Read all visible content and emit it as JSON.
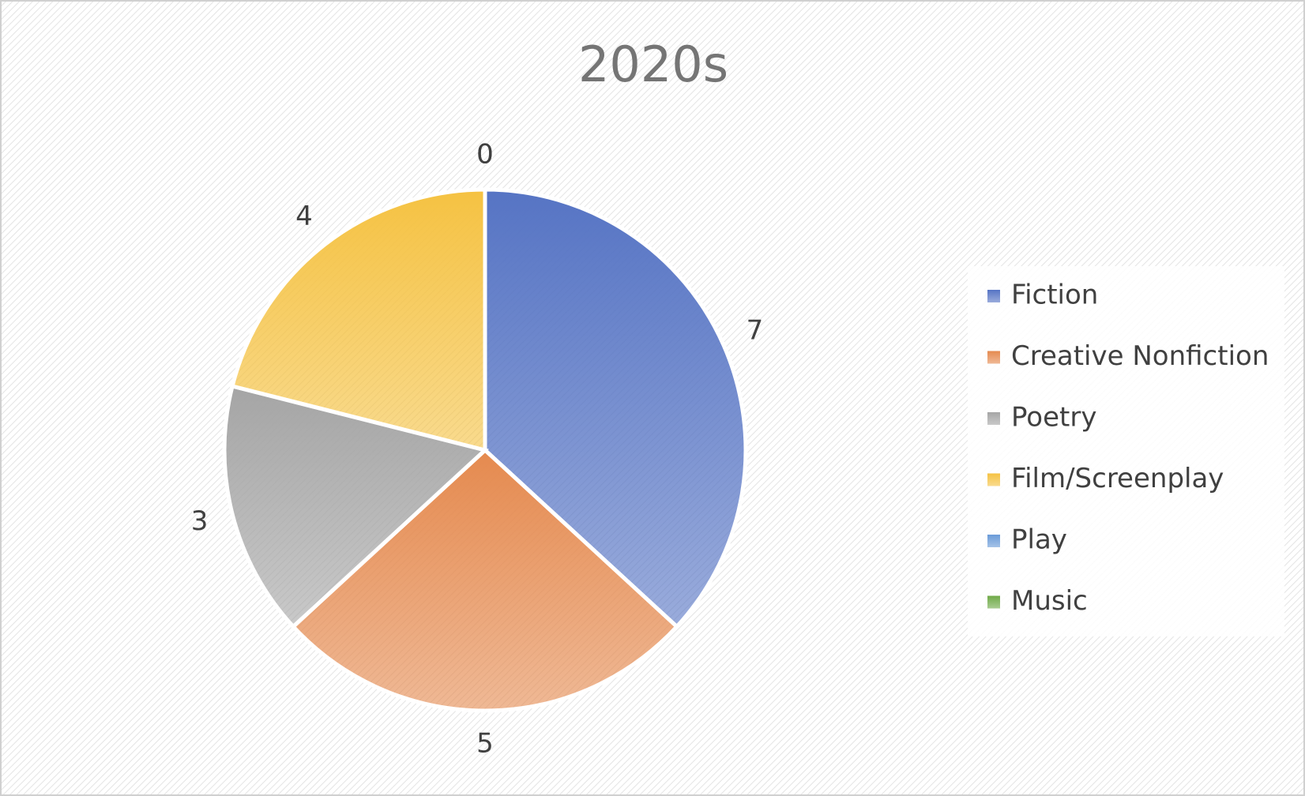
{
  "chart_data": {
    "type": "pie",
    "title": "2020s",
    "categories": [
      "Fiction",
      "Creative Nonfiction",
      "Poetry",
      "Film/Screenplay",
      "Play",
      "Music"
    ],
    "values": [
      7,
      5,
      3,
      4,
      0,
      0
    ],
    "colors": [
      "#5674c4",
      "#e58a4f",
      "#a5a5a5",
      "#f5c242",
      "#6a9bd8",
      "#6faa47"
    ],
    "legend": "right"
  }
}
